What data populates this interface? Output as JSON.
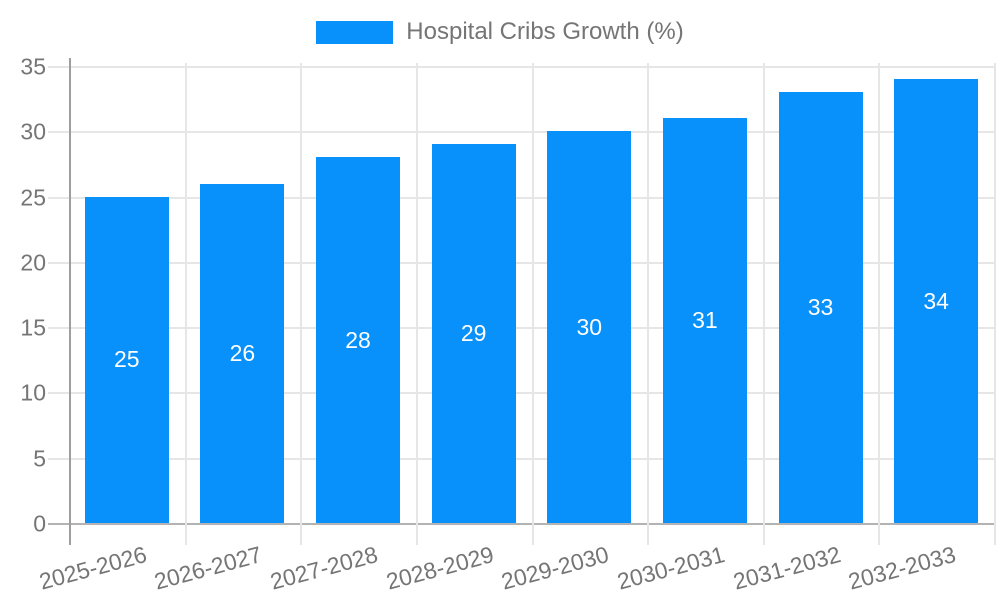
{
  "chart_data": {
    "type": "bar",
    "title": "",
    "legend": {
      "label": "Hospital Cribs Growth (%)",
      "position": "top-center"
    },
    "categories": [
      "2025-2026",
      "2026-2027",
      "2027-2028",
      "2028-2029",
      "2029-2030",
      "2030-2031",
      "2031-2032",
      "2032-2033"
    ],
    "series": [
      {
        "name": "Hospital Cribs Growth (%)",
        "values": [
          25,
          26,
          28,
          29,
          30,
          31,
          33,
          34
        ]
      }
    ],
    "data_labels": {
      "visible": true,
      "position": "inside-center",
      "color": "#ffffff"
    },
    "xlabel": "",
    "ylabel": "",
    "ylim": [
      0,
      35
    ],
    "yticks": [
      0,
      5,
      10,
      15,
      20,
      25,
      30,
      35
    ],
    "grid": true,
    "x_label_rotation_deg": -15,
    "colors": {
      "bar": "#0890FB",
      "text": "#757575",
      "grid": "#e6e6e6",
      "axis_y": "#9e9e9e",
      "axis_x": "#b3b3b3",
      "background": "#ffffff",
      "value_label": "#ffffff"
    }
  }
}
